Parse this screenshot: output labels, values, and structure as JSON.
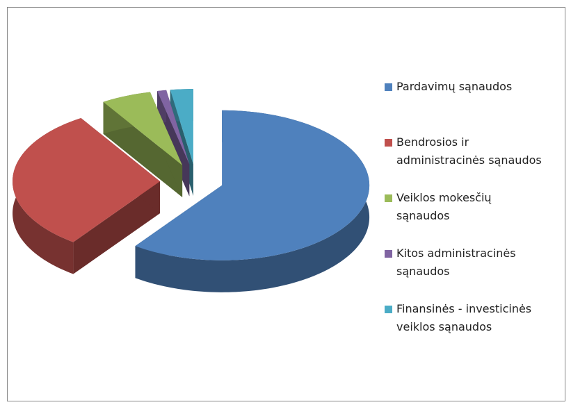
{
  "chart_data": {
    "type": "pie",
    "categories": [
      "Pardavimų sąnaudos",
      "Bendrosios ir administracinės sąnaudos",
      "Veiklos mokesčių sąnaudos",
      "Kitos administracinės sąnaudos",
      "Finansinės - investicinės veiklos sąnaudos"
    ],
    "values": [
      60,
      31,
      5.5,
      1,
      2.5
    ],
    "colors": [
      "#4f81bd",
      "#c0504d",
      "#9bbb59",
      "#8064a2",
      "#4bacc6"
    ],
    "legend": "right"
  }
}
